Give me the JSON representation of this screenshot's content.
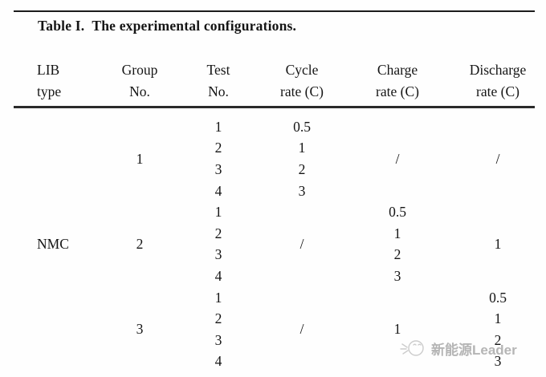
{
  "caption": {
    "label": "Table I.",
    "text": "The experimental configurations."
  },
  "table": {
    "row_count": 12,
    "columns": [
      {
        "id": "lib-type",
        "header": [
          "LIB",
          "type"
        ],
        "cells": [
          {
            "text": "NMC",
            "span": 12
          }
        ]
      },
      {
        "id": "group-no",
        "header": [
          "Group",
          "No."
        ],
        "cells": [
          {
            "text": "1",
            "span": 4
          },
          {
            "text": "2",
            "span": 4
          },
          {
            "text": "3",
            "span": 4
          }
        ]
      },
      {
        "id": "test-no",
        "header": [
          "Test",
          "No."
        ],
        "cells": [
          {
            "text": "1"
          },
          {
            "text": "2"
          },
          {
            "text": "3"
          },
          {
            "text": "4"
          },
          {
            "text": "1"
          },
          {
            "text": "2"
          },
          {
            "text": "3"
          },
          {
            "text": "4"
          },
          {
            "text": "1"
          },
          {
            "text": "2"
          },
          {
            "text": "3"
          },
          {
            "text": "4"
          }
        ]
      },
      {
        "id": "cycle-rate",
        "header": [
          "Cycle",
          "rate (C)"
        ],
        "cells": [
          {
            "text": "0.5"
          },
          {
            "text": "1"
          },
          {
            "text": "2"
          },
          {
            "text": "3"
          },
          {
            "text": "/",
            "span": 4
          },
          {
            "text": "/",
            "span": 4
          }
        ]
      },
      {
        "id": "charge-rate",
        "header": [
          "Charge",
          "rate (C)"
        ],
        "cells": [
          {
            "text": "/",
            "span": 4
          },
          {
            "text": "0.5"
          },
          {
            "text": "1"
          },
          {
            "text": "2"
          },
          {
            "text": "3"
          },
          {
            "text": "1",
            "span": 4
          }
        ]
      },
      {
        "id": "discharge-rate",
        "header": [
          "Discharge",
          "rate (C)"
        ],
        "cells": [
          {
            "text": "/",
            "span": 4
          },
          {
            "text": "1",
            "span": 4
          },
          {
            "text": "0.5"
          },
          {
            "text": "1"
          },
          {
            "text": "2"
          },
          {
            "text": "3"
          }
        ]
      }
    ]
  },
  "watermark": {
    "text": "新能源Leader"
  },
  "colors": {
    "text": "#151515",
    "rule": "#1c1c1c",
    "watermark": "#b5b5b5"
  }
}
